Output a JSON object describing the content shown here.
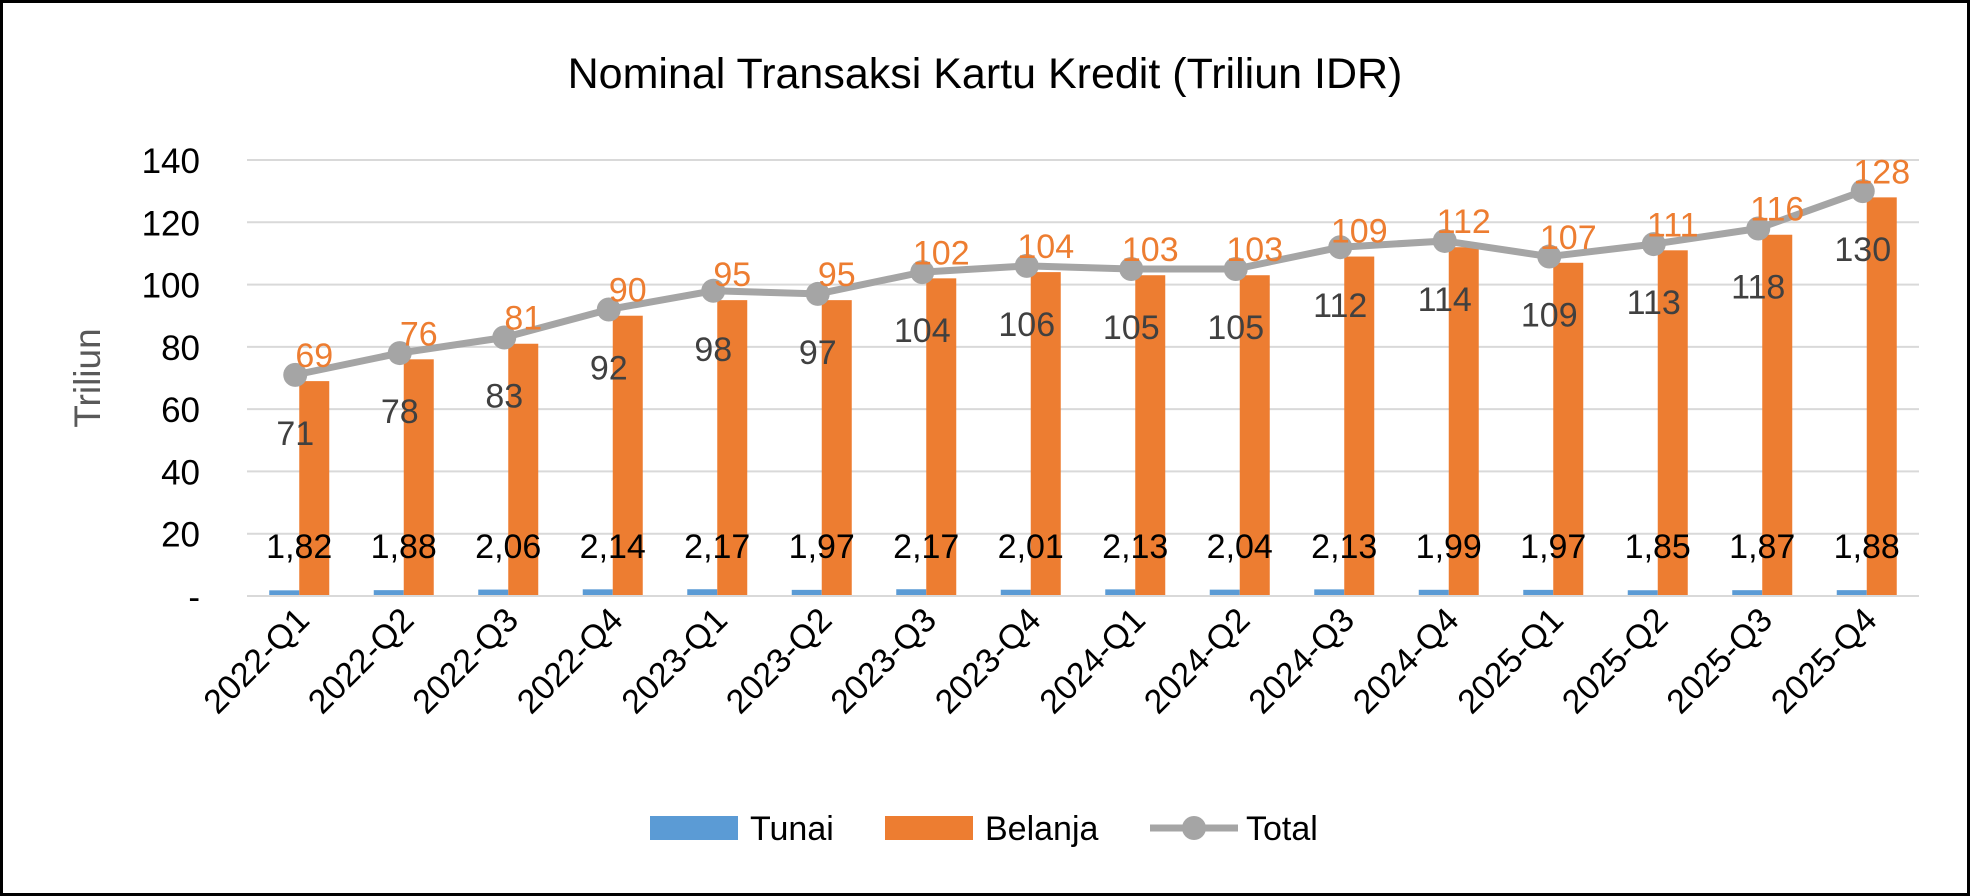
{
  "chart_data": {
    "type": "bar",
    "title": "Nominal Transaksi Kartu Kredit (Triliun IDR)",
    "xlabel": "",
    "ylabel": "Triliun",
    "ylim": [
      0,
      140
    ],
    "yticks": [
      0,
      20,
      40,
      60,
      80,
      100,
      120,
      140
    ],
    "ytick_labels": [
      "-",
      "20",
      "40",
      "60",
      "80",
      "100",
      "120",
      "140"
    ],
    "grid": true,
    "legend_position": "bottom",
    "categories": [
      "2022-Q1",
      "2022-Q2",
      "2022-Q3",
      "2022-Q4",
      "2023-Q1",
      "2023-Q2",
      "2023-Q3",
      "2023-Q4",
      "2024-Q1",
      "2024-Q2",
      "2024-Q3",
      "2024-Q4",
      "2025-Q1",
      "2025-Q2",
      "2025-Q3",
      "2025-Q4"
    ],
    "series": [
      {
        "name": "Tunai",
        "kind": "bar",
        "color": "#5B9BD5",
        "values": [
          1.82,
          1.88,
          2.06,
          2.14,
          2.17,
          1.97,
          2.17,
          2.01,
          2.13,
          2.04,
          2.13,
          1.99,
          1.97,
          1.85,
          1.87,
          1.88
        ],
        "labels": [
          "1,82",
          "1,88",
          "2,06",
          "2,14",
          "2,17",
          "1,97",
          "2,17",
          "2,01",
          "2,13",
          "2,04",
          "2,13",
          "1,99",
          "1,97",
          "1,85",
          "1,87",
          "1,88"
        ]
      },
      {
        "name": "Belanja",
        "kind": "bar",
        "color": "#ED7D31",
        "values": [
          69,
          76,
          81,
          90,
          95,
          95,
          102,
          104,
          103,
          103,
          109,
          112,
          107,
          111,
          116,
          128
        ],
        "labels": [
          "69",
          "76",
          "81",
          "90",
          "95",
          "95",
          "102",
          "104",
          "103",
          "103",
          "109",
          "112",
          "107",
          "111",
          "116",
          "128"
        ]
      },
      {
        "name": "Total",
        "kind": "line",
        "color": "#A5A5A5",
        "values": [
          71,
          78,
          83,
          92,
          98,
          97,
          104,
          106,
          105,
          105,
          112,
          114,
          109,
          113,
          118,
          130
        ],
        "labels": [
          "71",
          "78",
          "83",
          "92",
          "98",
          "97",
          "104",
          "106",
          "105",
          "105",
          "112",
          "114",
          "109",
          "113",
          "118",
          "130"
        ]
      }
    ]
  }
}
